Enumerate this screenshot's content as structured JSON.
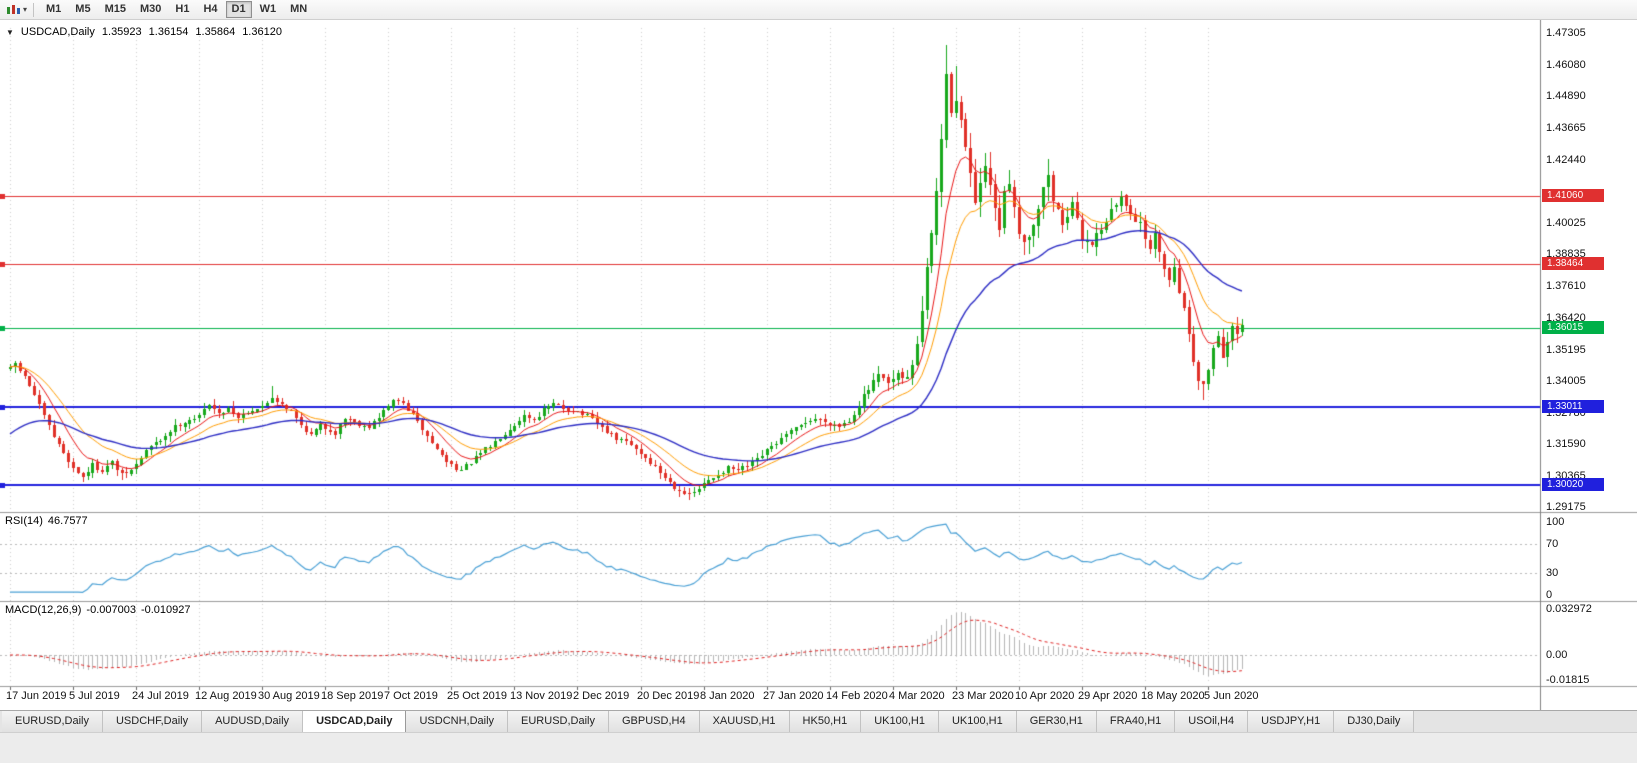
{
  "toolbar": {
    "timeframes": [
      "M1",
      "M5",
      "M15",
      "M30",
      "H1",
      "H4",
      "D1",
      "W1",
      "MN"
    ],
    "active_timeframe": "D1"
  },
  "chart": {
    "title": {
      "symbol": "USDCAD,Daily",
      "open": "1.35923",
      "high": "1.36154",
      "low": "1.35864",
      "close": "1.36120"
    }
  },
  "price_scale": {
    "labels": [
      "1.47305",
      "1.46080",
      "1.44890",
      "1.43665",
      "1.42440",
      "1.40025",
      "1.38835",
      "1.37610",
      "1.36420",
      "1.35195",
      "1.34005",
      "1.32780",
      "1.31590",
      "1.30365",
      "1.29175"
    ]
  },
  "time_scale": {
    "labels": [
      "17 Jun 2019",
      "5 Jul 2019",
      "24 Jul 2019",
      "12 Aug 2019",
      "30 Aug 2019",
      "18 Sep 2019",
      "7 Oct 2019",
      "25 Oct 2019",
      "13 Nov 2019",
      "2 Dec 2019",
      "20 Dec 2019",
      "8 Jan 2020",
      "27 Jan 2020",
      "14 Feb 2020",
      "4 Mar 2020",
      "23 Mar 2020",
      "10 Apr 2020",
      "29 Apr 2020",
      "18 May 2020",
      "5 Jun 2020"
    ]
  },
  "rsi_panel": {
    "name": "RSI(14)",
    "value": "46.7577",
    "scale_labels": [
      "100",
      "70",
      "30",
      "0"
    ],
    "scale_values": [
      100,
      70,
      30,
      0
    ],
    "dotted_levels": [
      70,
      30
    ],
    "line_color": "#4aa0d5"
  },
  "macd_panel": {
    "name": "MACD(12,26,9)",
    "value_main": "-0.007003",
    "value_signal": "-0.010927",
    "scale_labels": [
      "0.032972",
      "0.00",
      "-0.01815"
    ],
    "scale_values": [
      0.032972,
      0,
      -0.01815
    ],
    "histogram_color": "#b6b6b6",
    "signal_color": "#dd2020"
  },
  "tabs": {
    "active_index": 3,
    "items": [
      "EURUSD,Daily",
      "USDCHF,Daily",
      "AUDUSD,Daily",
      "USDCAD,Daily",
      "USDCNH,Daily",
      "EURUSD,Daily",
      "GBPUSD,H4",
      "XAUUSD,H1",
      "HK50,H1",
      "UK100,H1",
      "UK100,H1",
      "GER30,H1",
      "FRA40,H1",
      "USOil,H4",
      "USDJPY,H1",
      "DJ30,Daily"
    ],
    "icon": "chart-tab-icon"
  },
  "chart_data": {
    "type": "candlestick",
    "symbol": "USDCAD",
    "timeframe": "Daily",
    "price_range": {
      "min": 1.29175,
      "max": 1.47305
    },
    "candle_up_color": "#18a81c",
    "candle_down_color": "#e03028",
    "num_candles": 255,
    "ticks_every": 13,
    "horizontal_lines": [
      {
        "price": 1.4106,
        "color": "#e03030",
        "width": 1,
        "label": "1.41060"
      },
      {
        "price": 1.38464,
        "color": "#e03030",
        "width": 1,
        "label": "1.38464"
      },
      {
        "price": 1.36015,
        "color": "#00b048",
        "width": 1,
        "label": "1.36015"
      },
      {
        "price": 1.33011,
        "color": "#2020dd",
        "width": 2,
        "label": "1.33011"
      },
      {
        "price": 1.3002,
        "color": "#2020dd",
        "width": 2,
        "label": "1.30020"
      }
    ],
    "moving_averages": [
      {
        "period": 8,
        "color": "#e81717",
        "width": 1
      },
      {
        "period": 16,
        "color": "#ff9c00",
        "width": 1
      },
      {
        "period": 40,
        "color": "#2d2dc4",
        "width": 1.4
      }
    ],
    "indicators": [
      {
        "type": "RSI",
        "period": 14,
        "current": 46.7577
      },
      {
        "type": "MACD",
        "fast": 12,
        "slow": 26,
        "signal": 9,
        "current_main": -0.007003,
        "current_signal": -0.010927
      }
    ],
    "price_path": [
      [
        0,
        1.3445
      ],
      [
        1,
        1.3468
      ],
      [
        3,
        1.3415
      ],
      [
        5,
        1.3345
      ],
      [
        7,
        1.3265
      ],
      [
        9,
        1.3185
      ],
      [
        11,
        1.3125
      ],
      [
        13,
        1.3065
      ],
      [
        15,
        1.3035
      ],
      [
        17,
        1.3078
      ],
      [
        19,
        1.3058
      ],
      [
        21,
        1.3088
      ],
      [
        23,
        1.3038
      ],
      [
        25,
        1.3058
      ],
      [
        26,
        1.3078
      ],
      [
        28,
        1.3135
      ],
      [
        31,
        1.3175
      ],
      [
        34,
        1.3225
      ],
      [
        37,
        1.3252
      ],
      [
        39,
        1.3262
      ],
      [
        41,
        1.3315
      ],
      [
        43,
        1.3272
      ],
      [
        45,
        1.3298
      ],
      [
        47,
        1.3262
      ],
      [
        49,
        1.3285
      ],
      [
        52,
        1.3298
      ],
      [
        54,
        1.3338
      ],
      [
        56,
        1.3312
      ],
      [
        58,
        1.3282
      ],
      [
        60,
        1.3232
      ],
      [
        62,
        1.3192
      ],
      [
        64,
        1.3228
      ],
      [
        67,
        1.3202
      ],
      [
        69,
        1.3258
      ],
      [
        71,
        1.3242
      ],
      [
        74,
        1.3225
      ],
      [
        76,
        1.3258
      ],
      [
        78,
        1.3308
      ],
      [
        80,
        1.3328
      ],
      [
        82,
        1.3292
      ],
      [
        84,
        1.3242
      ],
      [
        86,
        1.3188
      ],
      [
        88,
        1.3138
      ],
      [
        90,
        1.3092
      ],
      [
        93,
        1.3058
      ],
      [
        95,
        1.3088
      ],
      [
        97,
        1.3122
      ],
      [
        99,
        1.3152
      ],
      [
        101,
        1.3185
      ],
      [
        103,
        1.3218
      ],
      [
        106,
        1.3268
      ],
      [
        108,
        1.3252
      ],
      [
        110,
        1.3288
      ],
      [
        112,
        1.3308
      ],
      [
        114,
        1.3295
      ],
      [
        117,
        1.3282
      ],
      [
        119,
        1.3265
      ],
      [
        121,
        1.3235
      ],
      [
        123,
        1.3205
      ],
      [
        125,
        1.318
      ],
      [
        127,
        1.3165
      ],
      [
        129,
        1.314
      ],
      [
        131,
        1.3105
      ],
      [
        133,
        1.3068
      ],
      [
        135,
        1.303
      ],
      [
        137,
        1.2995
      ],
      [
        140,
        1.2962
      ],
      [
        142,
        1.2988
      ],
      [
        144,
        1.3018
      ],
      [
        146,
        1.3045
      ],
      [
        148,
        1.3065
      ],
      [
        150,
        1.3058
      ],
      [
        152,
        1.3072
      ],
      [
        154,
        1.3098
      ],
      [
        156,
        1.3132
      ],
      [
        158,
        1.3162
      ],
      [
        160,
        1.3192
      ],
      [
        162,
        1.3215
      ],
      [
        164,
        1.3245
      ],
      [
        166,
        1.3255
      ],
      [
        168,
        1.3245
      ],
      [
        171,
        1.3228
      ],
      [
        173,
        1.3248
      ],
      [
        175,
        1.3308
      ],
      [
        177,
        1.3368
      ],
      [
        179,
        1.3415
      ],
      [
        181,
        1.3388
      ],
      [
        183,
        1.3418
      ],
      [
        185,
        1.3408
      ],
      [
        186,
        1.3468
      ],
      [
        187,
        1.3548
      ],
      [
        188,
        1.3668
      ],
      [
        189,
        1.3818
      ],
      [
        190,
        1.3968
      ],
      [
        191,
        1.4118
      ],
      [
        192,
        1.4328
      ],
      [
        193,
        1.4555
      ],
      [
        194,
        1.4445
      ],
      [
        195,
        1.4488
      ],
      [
        196,
        1.4395
      ],
      [
        197,
        1.4285
      ],
      [
        198,
        1.4175
      ],
      [
        199,
        1.4088
      ],
      [
        200,
        1.4132
      ],
      [
        201,
        1.4215
      ],
      [
        202,
        1.4145
      ],
      [
        203,
        1.4038
      ],
      [
        204,
        1.3988
      ],
      [
        205,
        1.4105
      ],
      [
        206,
        1.4165
      ],
      [
        207,
        1.4078
      ],
      [
        208,
        1.3978
      ],
      [
        209,
        1.3928
      ],
      [
        211,
        1.4008
      ],
      [
        213,
        1.4128
      ],
      [
        214,
        1.4195
      ],
      [
        215,
        1.4088
      ],
      [
        217,
        1.4008
      ],
      [
        219,
        1.4068
      ],
      [
        221,
        1.3948
      ],
      [
        223,
        1.3928
      ],
      [
        225,
        1.3988
      ],
      [
        227,
        1.4048
      ],
      [
        229,
        1.4098
      ],
      [
        231,
        1.4052
      ],
      [
        233,
        1.3992
      ],
      [
        234,
        1.3952
      ],
      [
        235,
        1.3908
      ],
      [
        236,
        1.3952
      ],
      [
        237,
        1.3902
      ],
      [
        238,
        1.3842
      ],
      [
        239,
        1.3782
      ],
      [
        240,
        1.3842
      ],
      [
        241,
        1.3752
      ],
      [
        242,
        1.3672
      ],
      [
        243,
        1.3582
      ],
      [
        244,
        1.3482
      ],
      [
        245,
        1.3412
      ],
      [
        246,
        1.3378
      ],
      [
        247,
        1.3448
      ],
      [
        248,
        1.3528
      ],
      [
        249,
        1.3578
      ],
      [
        250,
        1.3498
      ],
      [
        251,
        1.3548
      ],
      [
        252,
        1.3598
      ],
      [
        253,
        1.3578
      ],
      [
        254,
        1.3612
      ]
    ],
    "spikes": [
      {
        "d": 15,
        "l": 1.3028
      },
      {
        "d": 23,
        "l": 1.3022
      },
      {
        "d": 54,
        "h": 1.3382
      },
      {
        "d": 140,
        "l": 1.2946
      },
      {
        "d": 179,
        "h": 1.3455
      },
      {
        "d": 193,
        "h": 1.4685
      },
      {
        "d": 195,
        "h": 1.4605
      },
      {
        "d": 214,
        "h": 1.4248
      },
      {
        "d": 229,
        "h": 1.4128
      },
      {
        "d": 246,
        "l": 1.3328
      }
    ],
    "volatility_zones": [
      [
        0,
        175,
        0.9
      ],
      [
        176,
        185,
        1.4
      ],
      [
        186,
        215,
        2.4
      ],
      [
        216,
        240,
        1.6
      ],
      [
        241,
        254,
        1.5
      ]
    ]
  }
}
